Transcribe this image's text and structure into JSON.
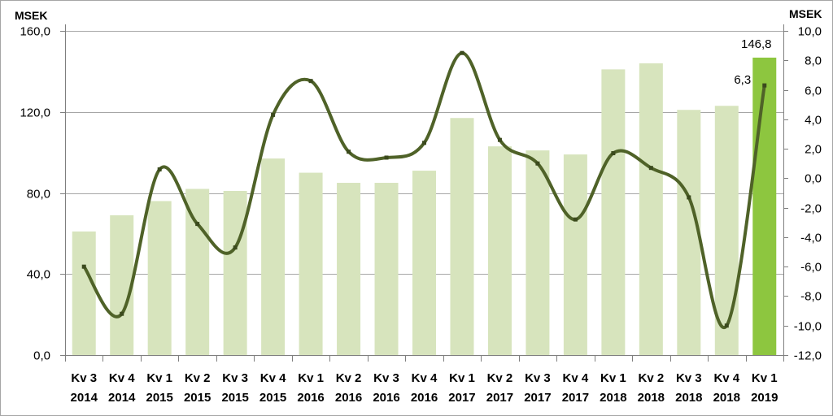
{
  "chart_data": {
    "type": "bar",
    "left_axis_unit": "MSEK",
    "right_axis_unit": "MSEK",
    "categories": [
      [
        "Kv 3",
        "2014"
      ],
      [
        "Kv 4",
        "2014"
      ],
      [
        "Kv 1",
        "2015"
      ],
      [
        "Kv 2",
        "2015"
      ],
      [
        "Kv 3",
        "2015"
      ],
      [
        "Kv 4",
        "2015"
      ],
      [
        "Kv 1",
        "2016"
      ],
      [
        "Kv 2",
        "2016"
      ],
      [
        "Kv 3",
        "2016"
      ],
      [
        "Kv 4",
        "2016"
      ],
      [
        "Kv 1",
        "2017"
      ],
      [
        "Kv 2",
        "2017"
      ],
      [
        "Kv 3",
        "2017"
      ],
      [
        "Kv 4",
        "2017"
      ],
      [
        "Kv 1",
        "2018"
      ],
      [
        "Kv 2",
        "2018"
      ],
      [
        "Kv 3",
        "2018"
      ],
      [
        "Kv 4",
        "2018"
      ],
      [
        "Kv 1",
        "2019"
      ]
    ],
    "series": [
      {
        "type": "bar",
        "axis": "left",
        "values": [
          61,
          69,
          76,
          82,
          81,
          97,
          90,
          85,
          85,
          91,
          117,
          103,
          101,
          99,
          141,
          144,
          121,
          123,
          146.8
        ],
        "color": "#d7e4bd",
        "highlight_color": "#8dc63f",
        "highlight_index": 18,
        "last_label": "146,8"
      },
      {
        "type": "line",
        "axis": "right",
        "values": [
          -6.0,
          -9.2,
          0.6,
          -3.1,
          -4.7,
          4.3,
          6.6,
          1.8,
          1.4,
          2.4,
          8.5,
          2.6,
          1.0,
          -2.8,
          1.7,
          0.7,
          -1.3,
          -10.0,
          6.3
        ],
        "color": "#4f6228",
        "last_label": "6,3"
      }
    ],
    "left_axis": {
      "min": 0,
      "max": 160,
      "ticks": [
        "0,0",
        "40,0",
        "80,0",
        "120,0",
        "160,0"
      ]
    },
    "right_axis": {
      "min": -12,
      "max": 10,
      "ticks": [
        "-12,0",
        "-10,0",
        "-8,0",
        "-6,0",
        "-4,0",
        "-2,0",
        "0,0",
        "2,0",
        "4,0",
        "6,0",
        "8,0",
        "10,0"
      ]
    },
    "grid": true
  }
}
